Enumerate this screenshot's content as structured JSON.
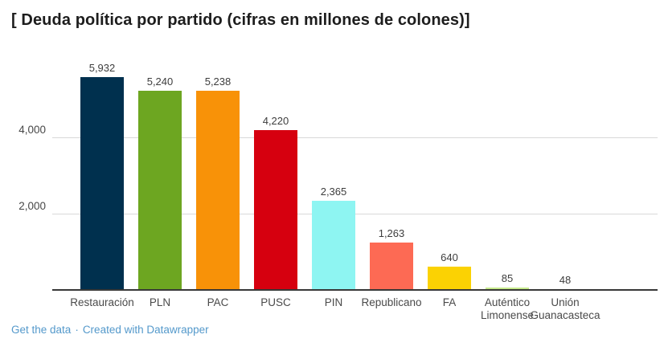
{
  "title": "[ Deuda política por partido (cifras en millones de colones)]",
  "footer": {
    "get_data_label": "Get the data",
    "separator": "·",
    "credit_label": "Created with Datawrapper",
    "link_color": "#5499cb"
  },
  "chart_data": {
    "type": "bar",
    "title": "[ Deuda política por partido (cifras en millones de colones)]",
    "categories": [
      "Restauración",
      "PLN",
      "PAC",
      "PUSC",
      "PIN",
      "Republicano",
      "FA",
      "Auténtico Limonense",
      "Unión Guanacasteca"
    ],
    "category_lines": [
      [
        "Restauración"
      ],
      [
        "PLN"
      ],
      [
        "PAC"
      ],
      [
        "PUSC"
      ],
      [
        "PIN"
      ],
      [
        "Republicano"
      ],
      [
        "FA"
      ],
      [
        "Auténtico",
        "Limonense"
      ],
      [
        "Unión",
        "Guanacasteca"
      ]
    ],
    "values": [
      5932,
      5240,
      5238,
      4220,
      2365,
      1263,
      640,
      85,
      48
    ],
    "value_labels": [
      "5,932",
      "5,240",
      "5,238",
      "4,220",
      "2,365",
      "1,263",
      "640",
      "85",
      "48"
    ],
    "bar_colors": [
      "#00304e",
      "#6da621",
      "#f89208",
      "#d6000f",
      "#8ef5f2",
      "#fd6a54",
      "#fbd203",
      "#c6ea8c",
      "#4e0e13"
    ],
    "xlabel": "",
    "ylabel": "",
    "ylim": [
      0,
      6000
    ],
    "yticks": [
      {
        "value": 2000,
        "label": "2,000"
      },
      {
        "value": 4000,
        "label": "4,000"
      }
    ],
    "grid": true,
    "legend": "none",
    "gridline_color": "#d9d9d9",
    "axis_color": "#383838",
    "value_label_color": "#3d3d3d",
    "tick_label_color": "#474747"
  }
}
